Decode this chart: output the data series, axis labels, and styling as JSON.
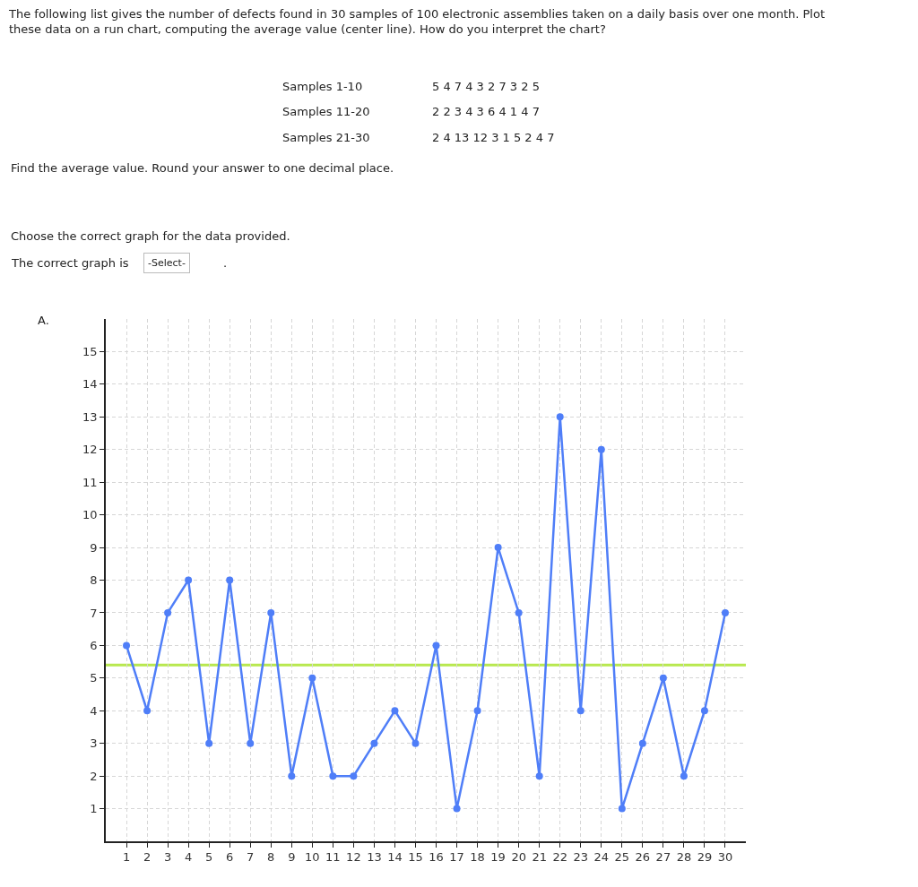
{
  "chart_data": {
    "type": "line",
    "title": "The following list gives the number of defects found in 30 samples of 100 electronic assemblies taken on a daily basis over one month. Plot these data on a run chart, computing the average value (center line). How do you interpret the chart?",
    "annotations": [
      "Samples 1-10",
      "5 4 7 4 3 2 7 3 2 5",
      "Samples 11-20",
      "2 2 3 4 3 6 4 1 4 7",
      "Samples 21-30",
      "2 4 13 12 3 1 5 2 4 7",
      "Find the average value. Round your answer to one decimal place.",
      "Choose the correct graph for the data provided.",
      "The correct graph is",
      "-Select-",
      ".",
      "A."
    ],
    "x": [
      1,
      2,
      3,
      4,
      5,
      6,
      7,
      8,
      9,
      10,
      11,
      12,
      13,
      14,
      15,
      16,
      17,
      18,
      19,
      20,
      21,
      22,
      23,
      24,
      25,
      26,
      27,
      28,
      29,
      30
    ],
    "values": [
      6,
      4,
      7,
      8,
      3,
      8,
      3,
      7,
      2,
      5,
      2,
      2,
      3,
      4,
      3,
      6,
      1,
      4,
      9,
      7,
      2,
      13,
      4,
      12,
      1,
      3,
      5,
      2,
      4,
      7
    ],
    "color": "#4f7ef8",
    "xlim": [
      0,
      31
    ],
    "xticks": [
      1,
      2,
      3,
      4,
      5,
      6,
      7,
      8,
      9,
      10,
      11,
      12,
      13,
      14,
      15,
      16,
      17,
      18,
      19,
      20,
      21,
      22,
      23,
      24,
      25,
      26,
      27,
      28,
      29,
      30
    ],
    "ylim": [
      0,
      16
    ],
    "yticks": [
      1,
      2,
      3,
      4,
      5,
      6,
      7,
      8,
      9,
      10,
      11,
      12,
      13,
      14,
      15
    ],
    "grid": true,
    "marker": "circle",
    "line_style": "solid",
    "ref_lines": [
      {
        "axis": "y",
        "value": 5.4,
        "color": "#b8e84f"
      }
    ]
  }
}
